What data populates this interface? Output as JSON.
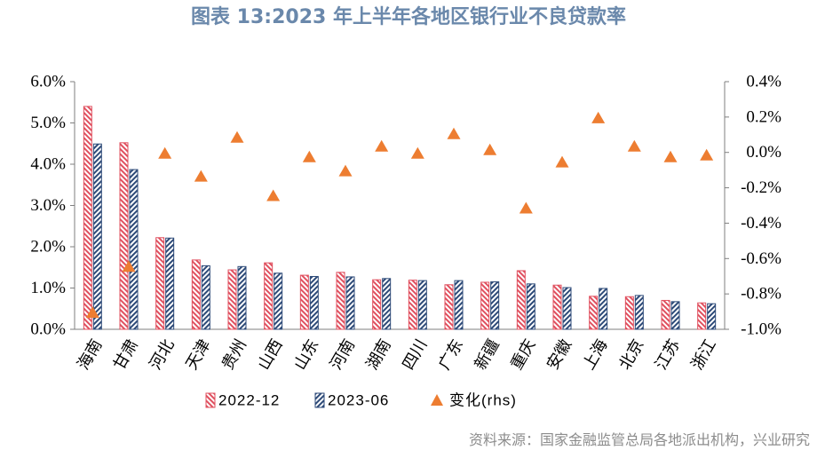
{
  "source": "资料来源：国家金融监管总局各地派出机构，兴业研究",
  "colors": {
    "title": "#6a88ab",
    "axis": "#7f7f7f",
    "source_text": "#8c8c8c"
  },
  "chart_data": {
    "type": "bar",
    "title": "图表 13:2023 年上半年各地区银行业不良贷款率",
    "xlabel": "",
    "ylabel": "",
    "categories": [
      "海南",
      "甘肃",
      "河北",
      "天津",
      "贵州",
      "山西",
      "山东",
      "河南",
      "湖南",
      "四川",
      "广东",
      "新疆",
      "重庆",
      "安徽",
      "上海",
      "北京",
      "江苏",
      "浙江"
    ],
    "series": [
      {
        "name": "2022-12",
        "type": "bar",
        "axis": "left",
        "unit": "%",
        "color": "#e0505f",
        "fill": "diagonal-hatch",
        "values": [
          5.4,
          4.52,
          2.22,
          1.68,
          1.44,
          1.61,
          1.31,
          1.38,
          1.2,
          1.19,
          1.08,
          1.14,
          1.42,
          1.07,
          0.8,
          0.79,
          0.7,
          0.64
        ]
      },
      {
        "name": "2023-06",
        "type": "bar",
        "axis": "left",
        "unit": "%",
        "color": "#2d4a78",
        "fill": "diagonal-hatch",
        "values": [
          4.49,
          3.87,
          2.21,
          1.54,
          1.52,
          1.36,
          1.28,
          1.27,
          1.23,
          1.18,
          1.18,
          1.15,
          1.1,
          1.01,
          0.99,
          0.82,
          0.67,
          0.62
        ]
      },
      {
        "name": "变化(rhs)",
        "type": "scatter",
        "axis": "right",
        "unit": "%",
        "marker": "triangle",
        "color": "#ed7d31",
        "values": [
          -0.91,
          -0.65,
          -0.01,
          -0.14,
          0.08,
          -0.25,
          -0.03,
          -0.11,
          0.03,
          -0.01,
          0.1,
          0.01,
          -0.32,
          -0.06,
          0.19,
          0.03,
          -0.03,
          -0.02
        ]
      }
    ],
    "ylim": [
      0,
      6
    ],
    "yticks": [
      0,
      1,
      2,
      3,
      4,
      5,
      6
    ],
    "ytick_labels": [
      "0.0%",
      "1.0%",
      "2.0%",
      "3.0%",
      "4.0%",
      "5.0%",
      "6.0%"
    ],
    "y2lim": [
      -1.0,
      0.4
    ],
    "y2ticks": [
      -1.0,
      -0.8,
      -0.6,
      -0.4,
      -0.2,
      0.0,
      0.2,
      0.4
    ],
    "y2tick_labels": [
      "-1.0%",
      "-0.8%",
      "-0.6%",
      "-0.4%",
      "-0.2%",
      "0.0%",
      "0.2%",
      "0.4%"
    ],
    "grid": false,
    "legend": "bottom"
  }
}
